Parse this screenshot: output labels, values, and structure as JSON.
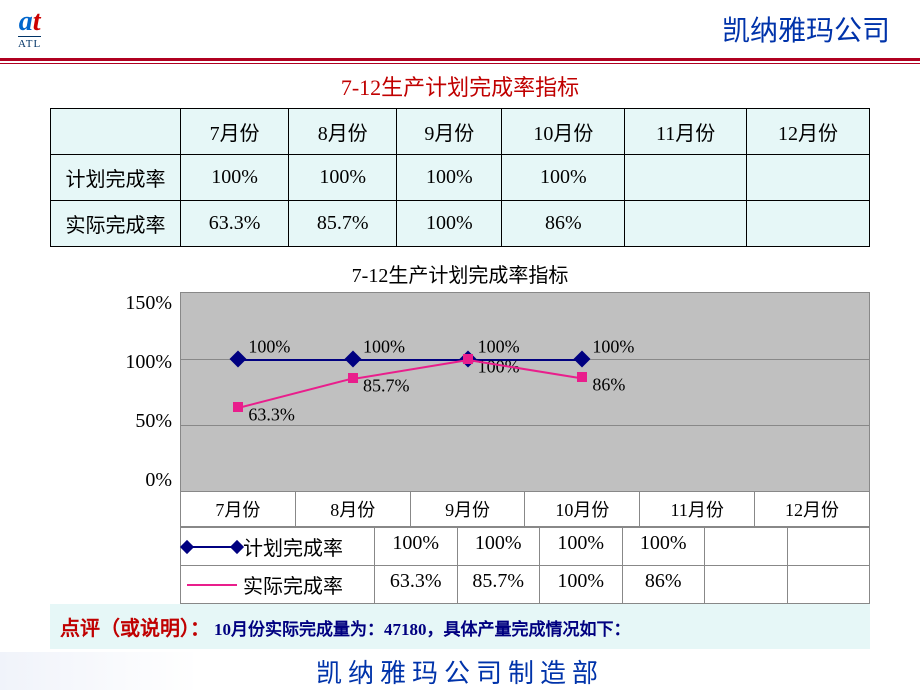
{
  "header": {
    "logo_text": "at",
    "logo_sub": "ATL",
    "company": "凯纳雅玛公司"
  },
  "title": "7-12生产计划完成率指标",
  "table": {
    "months": [
      "7月份",
      "8月份",
      "9月份",
      "10月份",
      "11月份",
      "12月份"
    ],
    "rows": [
      {
        "label": "计划完成率",
        "values": [
          "100%",
          "100%",
          "100%",
          "100%",
          "",
          ""
        ]
      },
      {
        "label": "实际完成率",
        "values": [
          "63.3%",
          "85.7%",
          "100%",
          "86%",
          "",
          ""
        ]
      }
    ],
    "header_bg": "#e6f7f7",
    "border_color": "#000000"
  },
  "chart": {
    "title": "7-12生产计划完成率指标",
    "type": "line",
    "plot_bg": "#c0c0c0",
    "grid_color": "#888888",
    "ylim": [
      0,
      150
    ],
    "ytick_step": 50,
    "yticks": [
      "0%",
      "50%",
      "100%",
      "150%"
    ],
    "categories": [
      "7月份",
      "8月份",
      "9月份",
      "10月份",
      "11月份",
      "12月份"
    ],
    "series": [
      {
        "name": "计划完成率",
        "color": "#000080",
        "marker": "diamond",
        "values": [
          100,
          100,
          100,
          100,
          null,
          null
        ],
        "labels": [
          "100%",
          "100%",
          "100%",
          "100%",
          "",
          ""
        ]
      },
      {
        "name": "实际完成率",
        "color": "#e91e8c",
        "marker": "square",
        "values": [
          63.3,
          85.7,
          100,
          86,
          null,
          null
        ],
        "labels": [
          "63.3%",
          "85.7%",
          "100%",
          "86%",
          "",
          ""
        ]
      }
    ],
    "title_fontsize": 20,
    "label_fontsize": 18
  },
  "note": {
    "lead": "点评（或说明）：",
    "body": "10月份实际完成量为：47180，具体产量完成情况如下："
  },
  "footer": "凯纳雅玛公司制造部"
}
